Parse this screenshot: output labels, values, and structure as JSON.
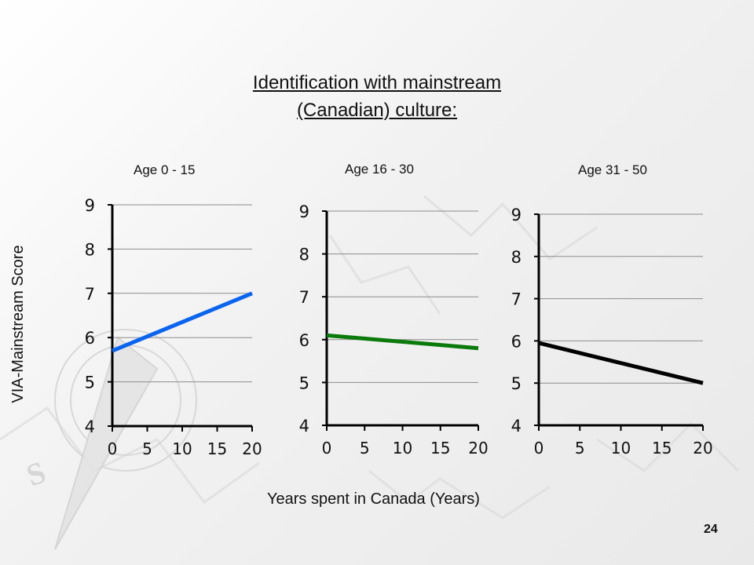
{
  "slide": {
    "title_line1": "Identification with mainstream",
    "title_line2": "(Canadian) culture:",
    "ylabel": "VIA-Mainstream Score",
    "xlabel": "Years spent in Canada (Years)",
    "page_number": "24"
  },
  "chart_data": [
    {
      "type": "line",
      "title": "Age 0 - 15",
      "xlim": [
        0,
        20
      ],
      "ylim": [
        4,
        9
      ],
      "x_ticks": [
        0,
        5,
        10,
        15,
        20
      ],
      "y_ticks": [
        4,
        5,
        6,
        7,
        8,
        9
      ],
      "grid": true,
      "series": [
        {
          "x": [
            0,
            20
          ],
          "values": [
            5.7,
            7.0
          ],
          "color": "#0a64f0"
        }
      ]
    },
    {
      "type": "line",
      "title": "Age 16 - 30",
      "xlim": [
        0,
        20
      ],
      "ylim": [
        4,
        9
      ],
      "x_ticks": [
        0,
        5,
        10,
        15,
        20
      ],
      "y_ticks": [
        4,
        5,
        6,
        7,
        8,
        9
      ],
      "grid": true,
      "series": [
        {
          "x": [
            0,
            20
          ],
          "values": [
            6.1,
            5.8
          ],
          "color": "#0a7a0a"
        }
      ]
    },
    {
      "type": "line",
      "title": "Age 31 - 50",
      "xlim": [
        0,
        20
      ],
      "ylim": [
        4,
        9
      ],
      "x_ticks": [
        0,
        5,
        10,
        15,
        20
      ],
      "y_ticks": [
        4,
        5,
        6,
        7,
        8,
        9
      ],
      "grid": true,
      "series": [
        {
          "x": [
            0,
            20
          ],
          "values": [
            5.95,
            5.0
          ],
          "color": "#000000"
        }
      ]
    }
  ]
}
